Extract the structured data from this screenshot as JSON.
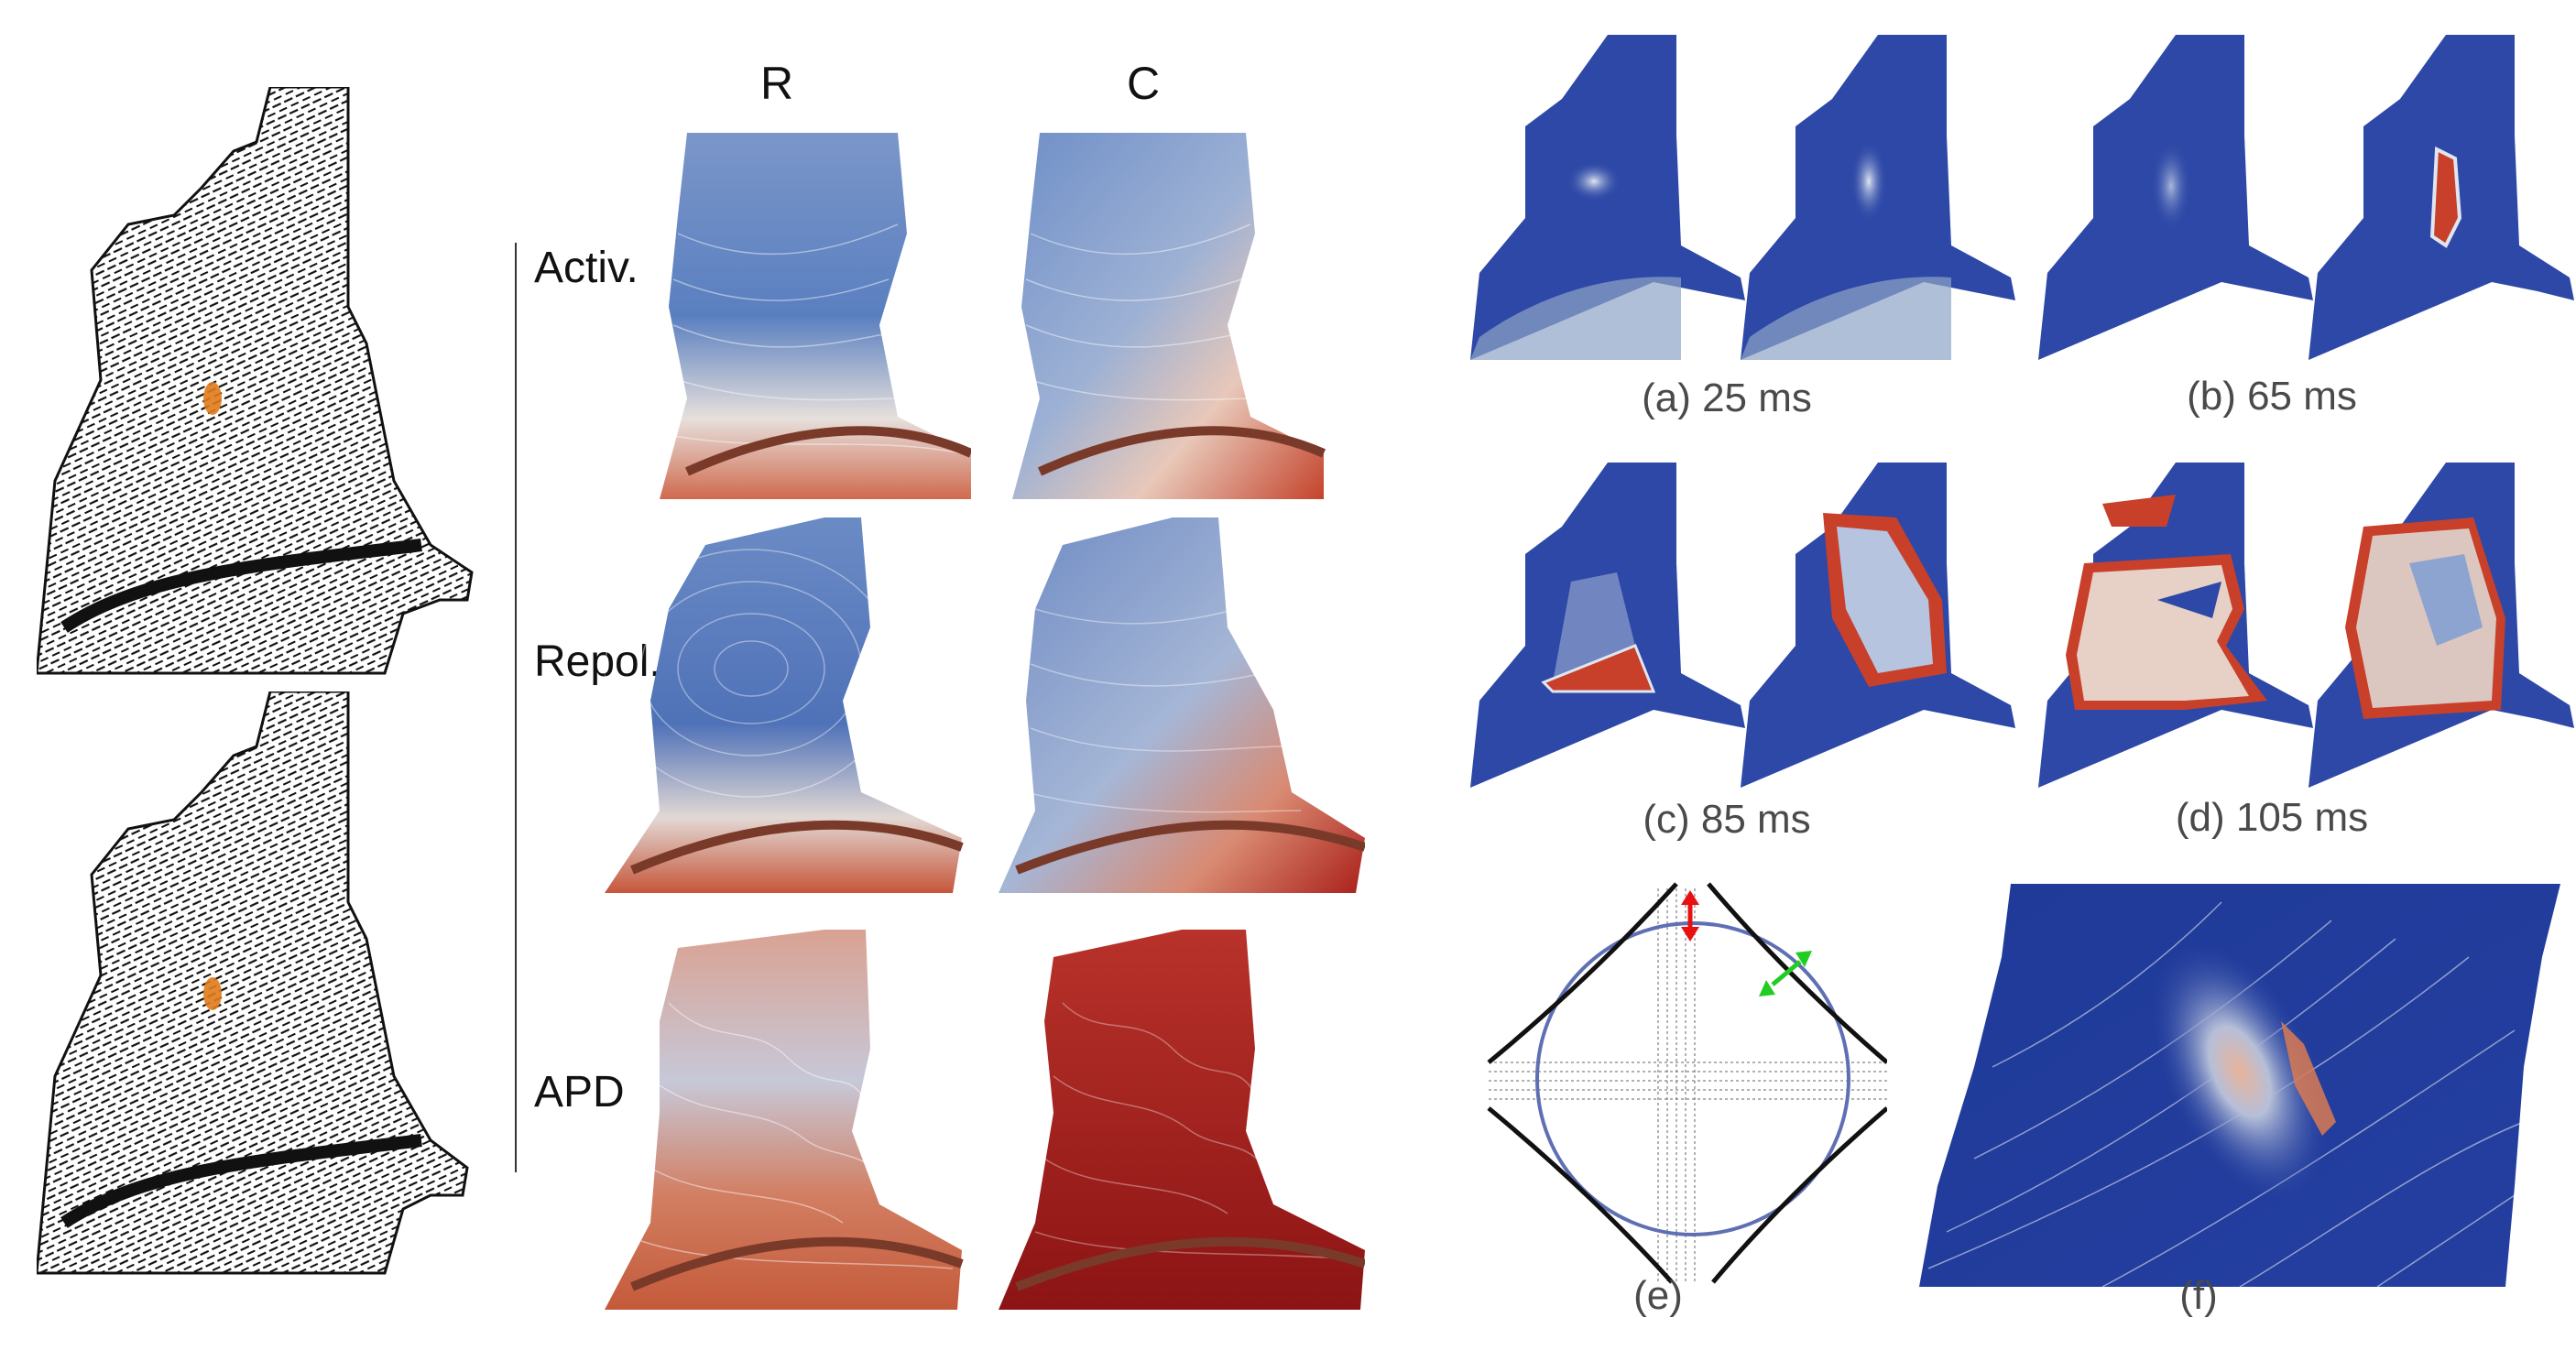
{
  "figure": {
    "column_headers": [
      "R",
      "C"
    ],
    "row_labels": [
      "Activ.",
      "Repol.",
      "APD"
    ],
    "snapshot_captions": [
      "(a) 25 ms",
      "(b) 65 ms",
      "(c) 85 ms",
      "(d) 105 ms"
    ],
    "panel_captions": [
      "(e)",
      "(f)"
    ]
  },
  "colors": {
    "depolarized_blue": "#1c3590",
    "resting_blue": "#2d48a6",
    "activation_light": "#dfe6f0",
    "excited_red": "#c8402a",
    "fiber_black": "#111111",
    "circle_blue": "#5f6fb3",
    "arrow_red": "#e81010",
    "arrow_green": "#22cc22"
  }
}
